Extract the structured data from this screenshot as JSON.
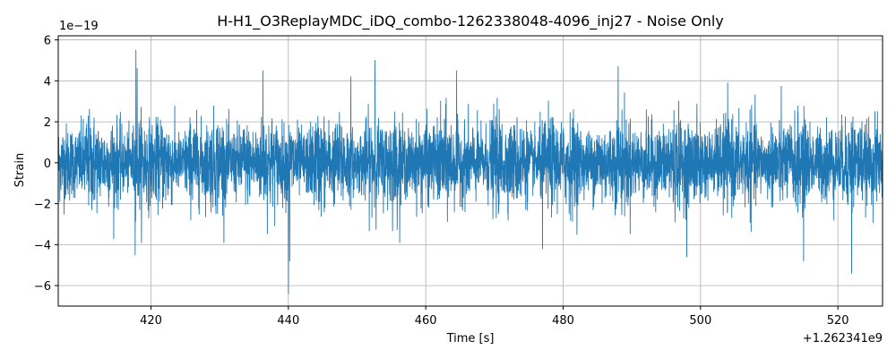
{
  "chart_data": {
    "type": "line",
    "title": "H-H1_O3ReplayMDC_iDQ_combo-1262338048-4096_inj27 - Noise Only",
    "xlabel": "Time [s]",
    "ylabel": "Strain",
    "x_offset_label": "+1.262341e9",
    "y_scale_label": "1e−19",
    "xlim": [
      406.5,
      526.5
    ],
    "ylim": [
      -7,
      6.2
    ],
    "x_ticks": [
      420,
      440,
      460,
      480,
      500,
      520
    ],
    "x_tick_labels": [
      "420",
      "440",
      "460",
      "480",
      "500",
      "520"
    ],
    "y_ticks": [
      -6,
      -4,
      -2,
      0,
      2,
      4,
      6
    ],
    "y_tick_labels": [
      "−6",
      "−4",
      "−2",
      "0",
      "2",
      "4",
      "6"
    ],
    "grid": true,
    "series_color": "#1f77b4",
    "series": [
      {
        "x_range": [
          406.5,
          526.5
        ],
        "typical_envelope": [
          -1.5,
          1.5
        ],
        "peaks": [
          {
            "x": 417.8,
            "y": 5.5
          },
          {
            "x": 418.0,
            "y": 4.6
          },
          {
            "x": 452.6,
            "y": 5.0
          },
          {
            "x": 449.1,
            "y": 4.2
          },
          {
            "x": 440.0,
            "y": -6.4
          },
          {
            "x": 440.2,
            "y": -4.8
          },
          {
            "x": 522.0,
            "y": 5.6
          },
          {
            "x": 522.0,
            "y": -5.4
          },
          {
            "x": 515.0,
            "y": -4.8
          },
          {
            "x": 417.7,
            "y": -4.5
          },
          {
            "x": 498.0,
            "y": -4.6
          },
          {
            "x": 436.3,
            "y": 4.5
          },
          {
            "x": 488.0,
            "y": 4.7
          },
          {
            "x": 464.5,
            "y": 4.5
          },
          {
            "x": 477.0,
            "y": -4.2
          }
        ]
      }
    ]
  }
}
